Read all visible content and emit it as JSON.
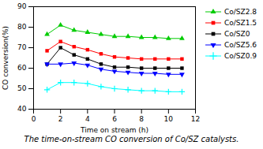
{
  "chart_data": {
    "type": "line",
    "xlabel": "Time on stream (h)",
    "ylabel": "CO conversion(%)",
    "caption": "The time-on-stream CO conversion of Co/SZ catalysts.",
    "x": [
      1,
      2,
      3,
      4,
      5,
      6,
      7,
      8,
      9,
      10,
      11
    ],
    "series": [
      {
        "name": "Co/SZ2.8",
        "color": "#00cc00",
        "marker": "triangle-up",
        "values": [
          76.5,
          81.0,
          78.5,
          77.5,
          76.5,
          75.5,
          75.5,
          75.0,
          75.0,
          74.5,
          74.5
        ]
      },
      {
        "name": "Co/SZ1.5",
        "color": "red",
        "marker": "square",
        "values": [
          68.5,
          73.0,
          70.5,
          69.0,
          67.0,
          65.5,
          65.0,
          64.5,
          64.5,
          64.5,
          64.5
        ]
      },
      {
        "name": "Co/SZ0",
        "color": "black",
        "marker": "square",
        "values": [
          62.0,
          70.0,
          66.5,
          64.5,
          62.0,
          60.5,
          60.5,
          60.0,
          60.0,
          60.0,
          60.0
        ]
      },
      {
        "name": "Co/SZ5.6",
        "color": "blue",
        "marker": "triangle-down",
        "values": [
          62.0,
          62.0,
          62.5,
          61.5,
          59.5,
          58.5,
          58.0,
          57.5,
          57.5,
          57.0,
          57.0
        ]
      },
      {
        "name": "Co/SZ0.9",
        "color": "cyan",
        "marker": "plus",
        "values": [
          49.5,
          53.0,
          53.0,
          52.5,
          51.0,
          50.0,
          49.5,
          49.0,
          49.0,
          48.5,
          48.5
        ]
      }
    ],
    "xlim": [
      0,
      12
    ],
    "ylim": [
      40,
      90
    ],
    "xticks": [
      0,
      2,
      4,
      6,
      8,
      10,
      12
    ],
    "yticks": [
      40,
      50,
      60,
      70,
      80,
      90
    ],
    "legend": "right"
  }
}
